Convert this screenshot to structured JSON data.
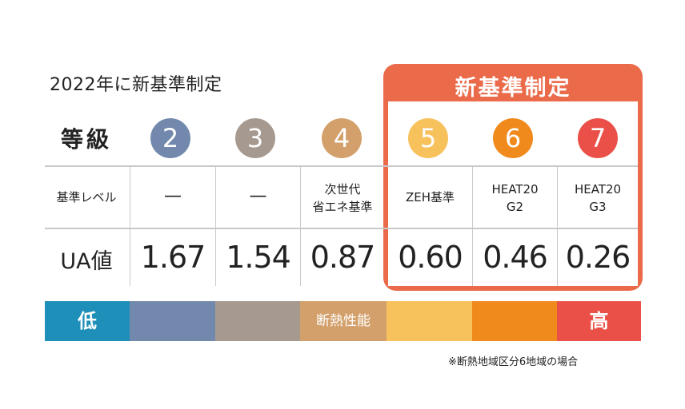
{
  "caption": "2022年に新基準制定",
  "new_standard_label": "新基準制定",
  "row_labels": {
    "grade": "等級",
    "level": "基準レベル",
    "ua": "UA値"
  },
  "grades": [
    {
      "number": "2",
      "color": "#7289ad",
      "level": "—",
      "ua": "1.67"
    },
    {
      "number": "3",
      "color": "#a69a90",
      "level": "—",
      "ua": "1.54"
    },
    {
      "number": "4",
      "color": "#d3a06b",
      "level_lines": [
        "次世代",
        "省エネ基準"
      ],
      "ua": "0.87"
    },
    {
      "number": "5",
      "color": "#f7c15c",
      "level": "ZEH基準",
      "ua": "0.60"
    },
    {
      "number": "6",
      "color": "#f08a1c",
      "level_lines": [
        "HEAT20",
        "G2"
      ],
      "ua": "0.46"
    },
    {
      "number": "7",
      "color": "#ea5048",
      "level_lines": [
        "HEAT20",
        "G3"
      ],
      "ua": "0.26"
    }
  ],
  "performance_bar": {
    "low_label": "低",
    "middle_label": "断熱性能",
    "high_label": "高",
    "low_color": "#1d8fb9"
  },
  "note": "※断熱地域区分6地域の場合",
  "colors": {
    "accent": "#ea6a4a",
    "grid": "#c9c9c9"
  }
}
